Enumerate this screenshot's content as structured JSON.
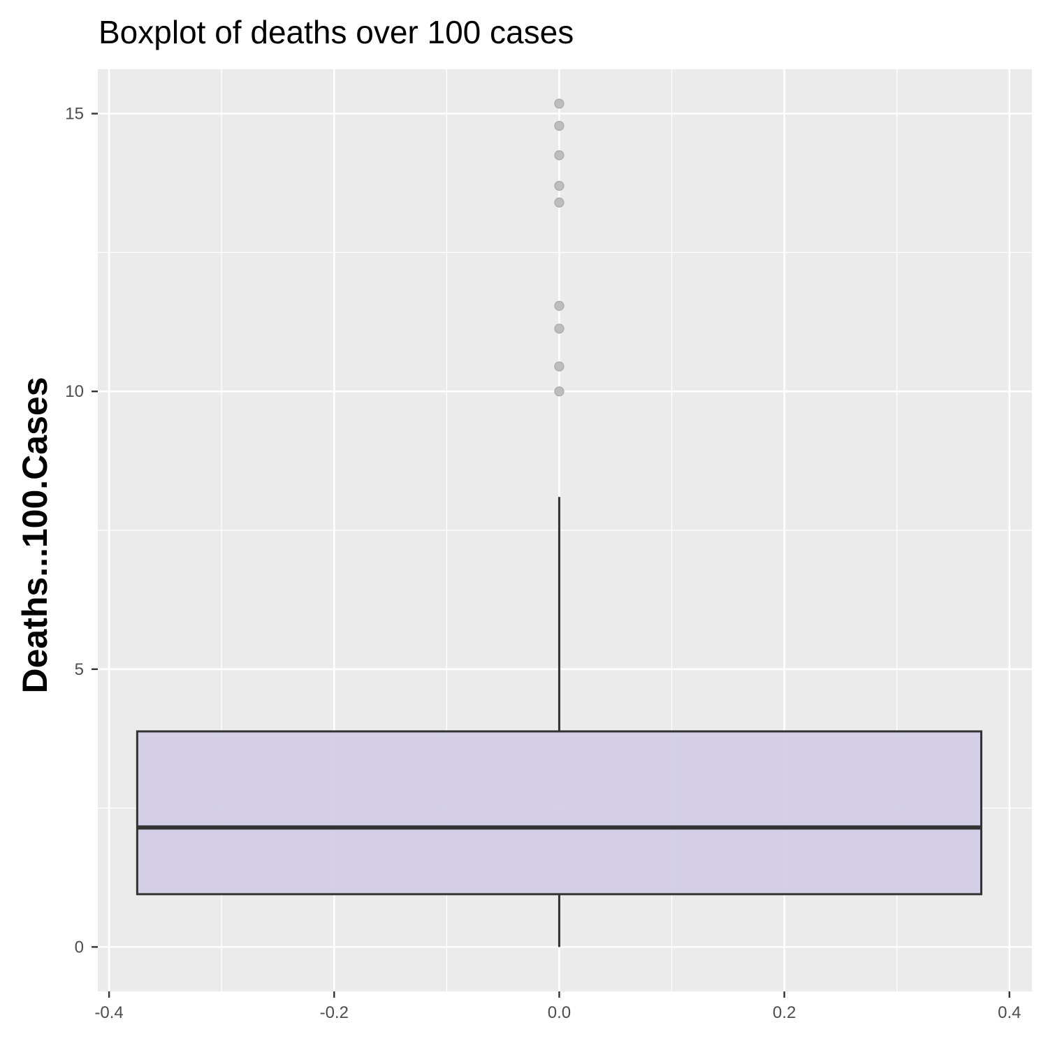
{
  "chart_data": {
    "type": "boxplot",
    "title": "Boxplot of deaths over 100 cases",
    "xlabel": "",
    "ylabel": "Deaths...100.Cases",
    "xlim": [
      -0.41,
      0.42
    ],
    "ylim": [
      -0.8,
      15.8
    ],
    "x_ticks": [
      -0.4,
      -0.2,
      0.0,
      0.2,
      0.4
    ],
    "x_tick_labels": [
      "-0.4",
      "-0.2",
      "0.0",
      "0.2",
      "0.4"
    ],
    "y_ticks": [
      0,
      5,
      10,
      15
    ],
    "y_tick_labels": [
      "0",
      "5",
      "10",
      "15"
    ],
    "x_minor_ticks": [
      -0.3,
      -0.1,
      0.1,
      0.3
    ],
    "y_minor_ticks": [
      2.5,
      7.5,
      12.5
    ],
    "grid": true,
    "box": {
      "x_center": 0.0,
      "x_left": -0.375,
      "x_right": 0.375,
      "min": 0.0,
      "q1": 0.95,
      "median": 2.15,
      "q3": 3.88,
      "max": 8.1
    },
    "outliers": [
      10.0,
      10.45,
      11.13,
      11.54,
      13.4,
      13.7,
      14.25,
      14.78,
      15.18
    ],
    "colors": {
      "panel": "#ebebeb",
      "grid": "#ffffff",
      "box_fill": "#d3cee6",
      "box_stroke": "#333333",
      "outlier": "#bdbdbd"
    }
  }
}
